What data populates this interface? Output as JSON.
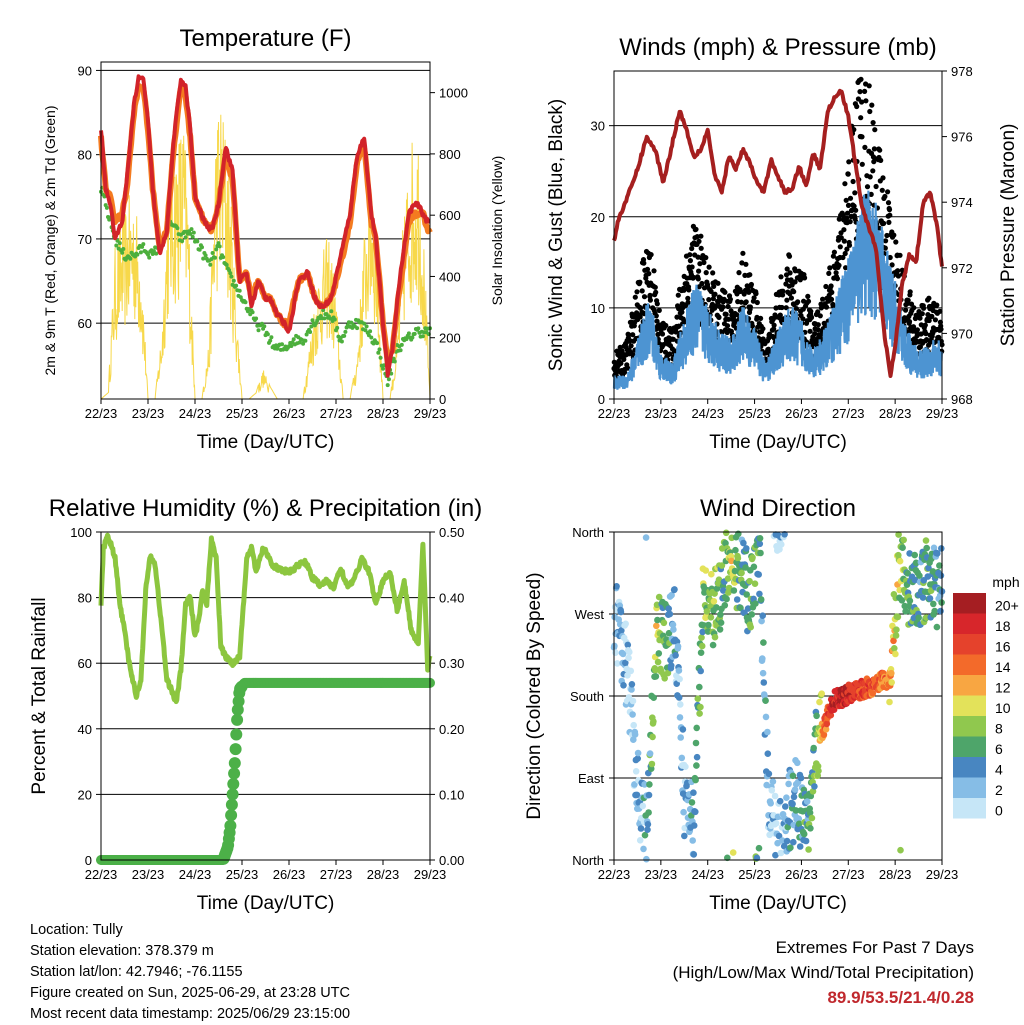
{
  "colors": {
    "temp_red": "#d2232a",
    "temp_orange": "#f47b20",
    "dewpoint_green": "#4caf3c",
    "solar_yellow": "#f7d84a",
    "wind_blue": "#4d94d2",
    "gust_black": "#000000",
    "pressure_maroon": "#a51f1f",
    "rh_lightgreen": "#8cc63f",
    "precip_green": "#4cb048",
    "extremes_red": "#c0282d"
  },
  "time_ticks": [
    "22/23",
    "23/23",
    "24/23",
    "25/23",
    "26/23",
    "27/23",
    "28/23",
    "29/23"
  ],
  "chart_data": [
    {
      "id": "temperature",
      "type": "line",
      "title": "Temperature (F)",
      "xlabel": "Time (Day/UTC)",
      "ylabel": "2m & 9m T (Red, Orange) & 2m Td (Green)",
      "y2label": "Solar Insolation (Yellow)",
      "xlim": [
        0,
        7
      ],
      "ylim": [
        51,
        91
      ],
      "y2lim": [
        0,
        1100
      ],
      "yticks": [
        60,
        70,
        80,
        90
      ],
      "y2ticks": [
        0,
        200,
        400,
        600,
        800,
        1000
      ],
      "hline": 90,
      "series": [
        {
          "name": "2m T",
          "color": "#d2232a",
          "x": [
            0,
            0.1,
            0.2,
            0.3,
            0.45,
            0.55,
            0.7,
            0.8,
            0.9,
            1.0,
            1.1,
            1.25,
            1.4,
            1.55,
            1.7,
            1.8,
            1.9,
            2.0,
            2.2,
            2.35,
            2.5,
            2.65,
            2.8,
            2.95,
            3.1,
            3.2,
            3.35,
            3.5,
            3.6,
            3.75,
            3.9,
            4.0,
            4.2,
            4.4,
            4.55,
            4.65,
            4.75,
            4.9,
            5.1,
            5.3,
            5.45,
            5.6,
            5.75,
            5.85,
            6.0,
            6.1,
            6.2,
            6.35,
            6.45,
            6.55,
            6.65,
            6.75,
            6.85,
            6.95,
            7.0
          ],
          "y": [
            83,
            76,
            74,
            70,
            72,
            77,
            86,
            89,
            89,
            84,
            76,
            68,
            71,
            82,
            89,
            88,
            83,
            75,
            72,
            71,
            74,
            81,
            78,
            65,
            66,
            62,
            65,
            63,
            63,
            61,
            60,
            59,
            65,
            66,
            63,
            62,
            62,
            63,
            68,
            73,
            80,
            82,
            73,
            70,
            60,
            54,
            57,
            65,
            69,
            73,
            74,
            74,
            73,
            72,
            72
          ]
        },
        {
          "name": "9m T",
          "color": "#f47b20",
          "x": [
            0,
            0.1,
            0.2,
            0.3,
            0.45,
            0.55,
            0.7,
            0.8,
            0.9,
            1.0,
            1.1,
            1.25,
            1.4,
            1.55,
            1.7,
            1.8,
            1.9,
            2.0,
            2.2,
            2.35,
            2.5,
            2.65,
            2.8,
            2.95,
            3.1,
            3.2,
            3.35,
            3.5,
            3.6,
            3.75,
            3.9,
            4.0,
            4.2,
            4.4,
            4.55,
            4.65,
            4.75,
            4.9,
            5.1,
            5.3,
            5.45,
            5.6,
            5.75,
            5.85,
            6.0,
            6.1,
            6.2,
            6.35,
            6.45,
            6.55,
            6.65,
            6.75,
            6.85,
            6.95,
            7.0
          ],
          "y": [
            82,
            76,
            75,
            72,
            73,
            76,
            85,
            88,
            88,
            83,
            76,
            69,
            71,
            81,
            88,
            87,
            82,
            75,
            72,
            71,
            74,
            80,
            77,
            65,
            66,
            63,
            65,
            63,
            63,
            61,
            60,
            60,
            65,
            66,
            63,
            62,
            62,
            63,
            67,
            72,
            79,
            81,
            72,
            70,
            60,
            55,
            57,
            64,
            68,
            72,
            73,
            73,
            73,
            71,
            71
          ]
        },
        {
          "name": "2m Td",
          "color": "#4caf3c",
          "x": [
            0,
            0.1,
            0.3,
            0.5,
            0.7,
            0.9,
            1.1,
            1.3,
            1.5,
            1.7,
            1.9,
            2.1,
            2.3,
            2.5,
            2.7,
            2.9,
            3.1,
            3.3,
            3.5,
            3.7,
            3.9,
            4.1,
            4.3,
            4.5,
            4.7,
            4.9,
            5.1,
            5.3,
            5.5,
            5.7,
            5.9,
            6.1,
            6.3,
            6.5,
            6.7,
            6.9,
            7.0
          ],
          "y": [
            76,
            74,
            70,
            68,
            68,
            69,
            68,
            70,
            72,
            70,
            71,
            69,
            67,
            69,
            66,
            64,
            62,
            60,
            59,
            57,
            57,
            58,
            58,
            60,
            61,
            61,
            58,
            60,
            60,
            59,
            57,
            53,
            57,
            58,
            59,
            59,
            59
          ]
        },
        {
          "name": "Solar",
          "color": "#f7d84a",
          "axis": "y2",
          "x": [
            0,
            0.15,
            0.3,
            0.45,
            0.55,
            0.7,
            0.85,
            1.0,
            1.15,
            1.3,
            1.45,
            1.6,
            1.75,
            1.85,
            2.0,
            2.15,
            2.3,
            2.45,
            2.55,
            2.7,
            2.85,
            3.0,
            3.15,
            3.3,
            3.45,
            3.6,
            3.75,
            3.85,
            4.0,
            4.15,
            4.3,
            4.45,
            4.6,
            4.75,
            4.85,
            5.0,
            5.15,
            5.3,
            5.45,
            5.6,
            5.75,
            5.85,
            6.0,
            6.15,
            6.3,
            6.45,
            6.6,
            6.75,
            6.85,
            7.0
          ],
          "y": [
            0,
            20,
            500,
            600,
            650,
            700,
            500,
            0,
            0,
            250,
            800,
            850,
            950,
            700,
            0,
            0,
            200,
            950,
            1000,
            850,
            400,
            0,
            0,
            20,
            100,
            40,
            0,
            0,
            0,
            0,
            0,
            200,
            400,
            500,
            550,
            350,
            0,
            0,
            150,
            550,
            780,
            600,
            0,
            0,
            200,
            650,
            850,
            900,
            600,
            0
          ]
        }
      ]
    },
    {
      "id": "winds",
      "type": "scatter",
      "title": "Winds (mph) & Pressure (mb)",
      "xlabel": "Time (Day/UTC)",
      "ylabel": "Sonic Wind & Gust (Blue, Black)",
      "y2label": "Station Pressure (Maroon)",
      "xlim": [
        0,
        7
      ],
      "ylim": [
        0,
        36
      ],
      "y2lim": [
        968,
        978
      ],
      "yticks": [
        0,
        10,
        20,
        30
      ],
      "y2ticks": [
        968,
        970,
        972,
        974,
        976,
        978
      ],
      "series": [
        {
          "name": "Sonic Wind",
          "color": "#4d94d2",
          "x": [
            0,
            0.25,
            0.5,
            0.75,
            1.0,
            1.25,
            1.5,
            1.75,
            2.0,
            2.25,
            2.5,
            2.75,
            3.0,
            3.25,
            3.5,
            3.75,
            4.0,
            4.25,
            4.5,
            4.75,
            5.0,
            5.25,
            5.5,
            5.75,
            6.0,
            6.25,
            6.5,
            6.75,
            7.0
          ],
          "y": [
            2,
            2,
            5,
            9,
            4,
            3,
            7,
            10,
            8,
            6,
            5,
            8,
            6,
            3,
            6,
            8,
            7,
            4,
            6,
            9,
            12,
            17,
            18,
            14,
            10,
            6,
            4,
            5,
            5
          ]
        },
        {
          "name": "Gust",
          "color": "#000000",
          "x": [
            0,
            0.25,
            0.5,
            0.75,
            1.0,
            1.25,
            1.5,
            1.75,
            2.0,
            2.25,
            2.5,
            2.75,
            3.0,
            3.25,
            3.5,
            3.75,
            4.0,
            4.25,
            4.5,
            4.75,
            5.0,
            5.25,
            5.5,
            5.75,
            6.0,
            6.25,
            6.5,
            6.75,
            7.0
          ],
          "y": [
            4,
            5,
            10,
            15,
            7,
            6,
            13,
            16,
            12,
            10,
            9,
            13,
            10,
            5,
            10,
            13,
            12,
            7,
            10,
            14,
            22,
            30,
            27,
            20,
            15,
            10,
            8,
            9,
            8
          ]
        },
        {
          "name": "Station Pressure",
          "color": "#a51f1f",
          "axis": "y2",
          "x": [
            0,
            0.1,
            0.3,
            0.5,
            0.7,
            0.9,
            1.05,
            1.2,
            1.4,
            1.55,
            1.7,
            1.85,
            2.0,
            2.15,
            2.3,
            2.45,
            2.6,
            2.75,
            2.9,
            3.05,
            3.2,
            3.35,
            3.5,
            3.65,
            3.8,
            3.95,
            4.1,
            4.25,
            4.4,
            4.55,
            4.7,
            4.85,
            5.0,
            5.15,
            5.3,
            5.45,
            5.6,
            5.75,
            5.9,
            6.0,
            6.15,
            6.3,
            6.45,
            6.6,
            6.75,
            6.9,
            7.0
          ],
          "y": [
            972.8,
            973.5,
            974.2,
            975.0,
            976.0,
            975.5,
            974.6,
            975.5,
            976.8,
            976.2,
            975.4,
            975.6,
            976.2,
            974.8,
            974.3,
            975.4,
            975.0,
            975.6,
            975.2,
            974.6,
            974.3,
            975.3,
            974.8,
            974.3,
            974.4,
            975.1,
            974.5,
            975.5,
            975.0,
            976.7,
            977.2,
            977.4,
            976.6,
            975.2,
            973.8,
            973.2,
            972.5,
            970.2,
            968.7,
            969.6,
            971.5,
            972.4,
            972.2,
            974.0,
            974.3,
            973.2,
            972.0
          ]
        }
      ]
    },
    {
      "id": "rh_precip",
      "type": "line",
      "title": "Relative Humidity (%) & Precipitation (in)",
      "xlabel": "Time (Day/UTC)",
      "ylabel": "Percent & Total Rainfall",
      "xlim": [
        0,
        7
      ],
      "ylim": [
        0,
        100
      ],
      "y2lim": [
        0,
        0.5
      ],
      "yticks": [
        0,
        20,
        40,
        60,
        80,
        100
      ],
      "y2ticks": [
        "0.00",
        "0.10",
        "0.20",
        "0.30",
        "0.40",
        "0.50"
      ],
      "series": [
        {
          "name": "RH",
          "color": "#8cc63f",
          "x": [
            0,
            0.05,
            0.15,
            0.3,
            0.4,
            0.5,
            0.6,
            0.75,
            0.85,
            0.95,
            1.05,
            1.15,
            1.3,
            1.4,
            1.5,
            1.6,
            1.7,
            1.8,
            1.9,
            2.0,
            2.1,
            2.15,
            2.25,
            2.35,
            2.45,
            2.55,
            2.65,
            2.8,
            2.95,
            3.1,
            3.2,
            3.3,
            3.45,
            3.55,
            3.65,
            3.75,
            3.9,
            4.05,
            4.2,
            4.35,
            4.5,
            4.65,
            4.8,
            4.95,
            5.1,
            5.25,
            5.4,
            5.55,
            5.7,
            5.85,
            6.0,
            6.15,
            6.3,
            6.45,
            6.6,
            6.75,
            6.85,
            6.95,
            7.0
          ],
          "y": [
            78,
            95,
            99,
            92,
            78,
            70,
            60,
            50,
            55,
            82,
            93,
            90,
            70,
            55,
            52,
            48,
            58,
            78,
            80,
            68,
            75,
            82,
            78,
            98,
            92,
            65,
            62,
            60,
            62,
            92,
            95,
            88,
            95,
            93,
            90,
            89,
            88,
            88,
            90,
            91,
            86,
            84,
            85,
            83,
            89,
            83,
            86,
            92,
            88,
            78,
            85,
            88,
            76,
            85,
            70,
            66,
            97,
            58,
            62
          ]
        },
        {
          "name": "Total Rainfall",
          "color": "#4cb048",
          "axis": "y2",
          "x": [
            0,
            2.6,
            2.7,
            2.75,
            2.8,
            2.85,
            2.9,
            2.95,
            3.05,
            7.0
          ],
          "y": [
            0,
            0,
            0.02,
            0.05,
            0.1,
            0.15,
            0.22,
            0.26,
            0.27,
            0.27
          ]
        }
      ]
    },
    {
      "id": "wind_direction",
      "type": "scatter",
      "title": "Wind Direction",
      "xlabel": "Time (Day/UTC)",
      "ylabel": "Direction (Colored By Speed)",
      "xlim": [
        0,
        7
      ],
      "ylim": [
        0,
        360
      ],
      "yticks": [
        "North",
        "East",
        "South",
        "West",
        "North"
      ],
      "legend_title": "mph",
      "legend_labels": [
        "20+",
        "18",
        "16",
        "14",
        "12",
        "10",
        "8",
        "6",
        "4",
        "2",
        "0"
      ],
      "legend_colors": [
        "#a51e22",
        "#d7262b",
        "#e5422c",
        "#f36a2a",
        "#f8a642",
        "#e3e25a",
        "#90c84e",
        "#4ea56a",
        "#4886c1",
        "#86bde6",
        "#c6e6f7"
      ],
      "series": [
        {
          "name": "Direction",
          "x": [
            0.1,
            0.3,
            0.5,
            0.7,
            0.9,
            1.1,
            1.3,
            1.5,
            1.7,
            1.9,
            2.1,
            2.3,
            2.5,
            2.7,
            2.9,
            3.1,
            3.3,
            3.5,
            3.7,
            3.9,
            4.1,
            4.3,
            4.5,
            4.7,
            4.9,
            5.1,
            5.3,
            5.5,
            5.7,
            5.9,
            6.1,
            6.3,
            6.5,
            6.7,
            6.9
          ],
          "y": [
            260,
            200,
            80,
            30,
            250,
            240,
            260,
            70,
            40,
            280,
            270,
            300,
            330,
            310,
            290,
            340,
            60,
            20,
            50,
            70,
            30,
            120,
            150,
            175,
            180,
            185,
            188,
            190,
            195,
            200,
            330,
            300,
            290,
            310,
            300
          ],
          "speed": [
            2,
            1,
            2,
            3,
            9,
            6,
            3,
            2,
            4,
            7,
            8,
            6,
            9,
            5,
            6,
            5,
            2,
            1,
            3,
            4,
            5,
            7,
            14,
            18,
            19,
            17,
            16,
            15,
            14,
            12,
            8,
            6,
            5,
            6,
            4
          ]
        }
      ]
    }
  ],
  "footer": {
    "location": "Location: Tully",
    "elevation": "Station elevation: 378.379 m",
    "latlon": "Station lat/lon: 42.7946; -76.1155",
    "created": "Figure created on Sun, 2025-06-29, at 23:28 UTC",
    "recent": "Most recent data timestamp: 2025/06/29 23:15:00",
    "extremes_title": "Extremes For Past 7 Days",
    "extremes_sub": "(High/Low/Max Wind/Total Precipitation)",
    "extremes_values": "89.9/53.5/21.4/0.28"
  }
}
